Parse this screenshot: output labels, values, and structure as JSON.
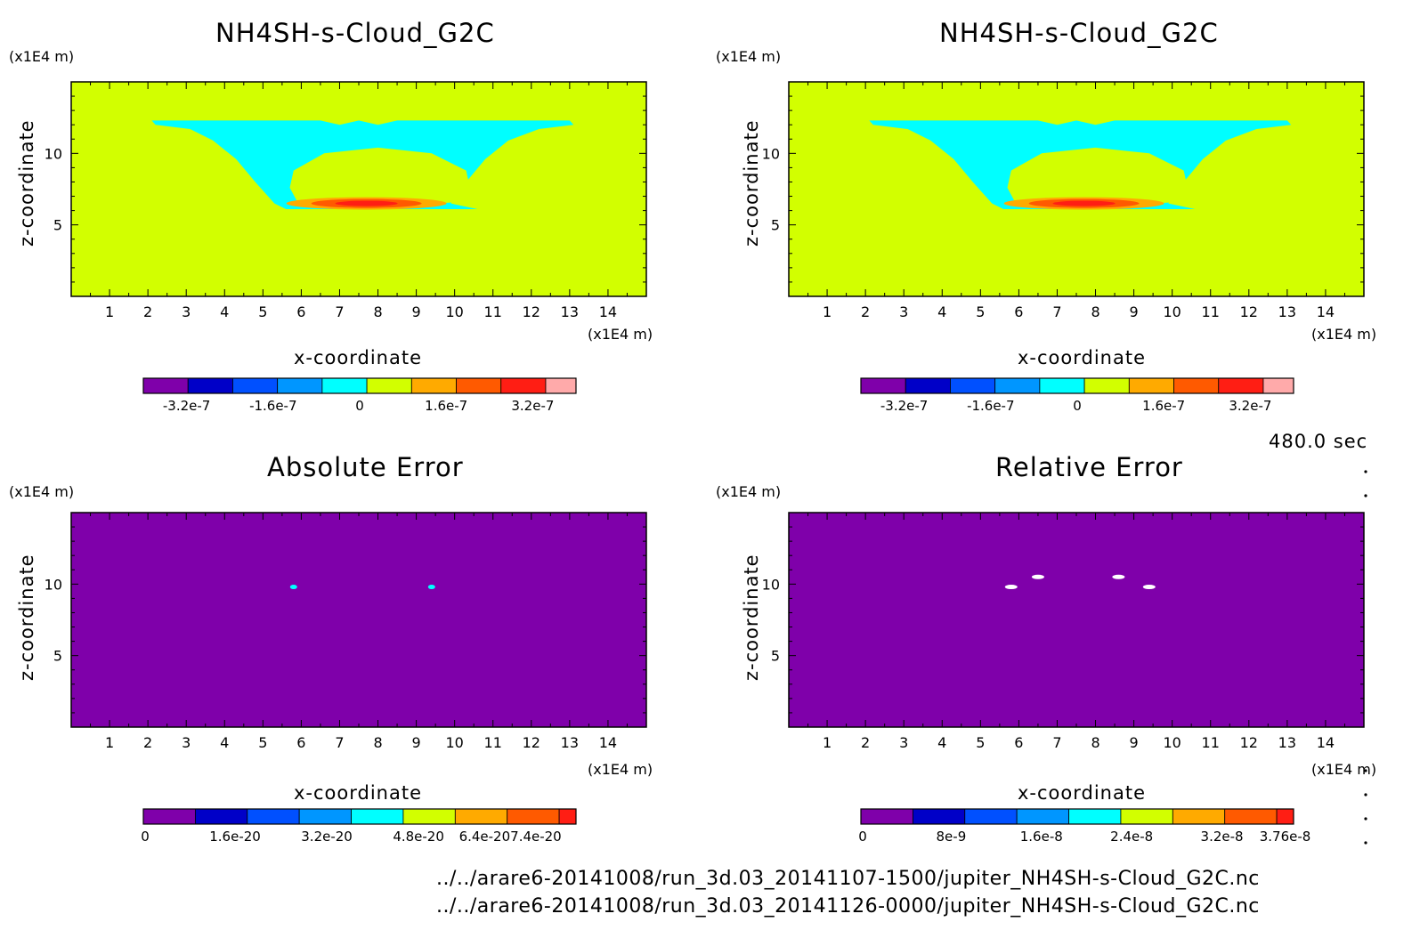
{
  "panels": [
    {
      "title": "NH4SH-s-Cloud_G2C",
      "unit_label": "(x1E4 m)",
      "xunit_label": "(x1E4 m)",
      "xlabel": "x-coordinate",
      "ylabel": "z-coordinate",
      "colorbar_ticks": [
        "-3.2e-7",
        "-1.6e-7",
        "0",
        "1.6e-7",
        "3.2e-7"
      ]
    },
    {
      "title": "NH4SH-s-Cloud_G2C",
      "unit_label": "(x1E4 m)",
      "xunit_label": "(x1E4 m)",
      "xlabel": "x-coordinate",
      "ylabel": "z-coordinate",
      "colorbar_ticks": [
        "-3.2e-7",
        "-1.6e-7",
        "0",
        "1.6e-7",
        "3.2e-7"
      ]
    },
    {
      "title": "Absolute Error",
      "unit_label": "(x1E4 m)",
      "xunit_label": "(x1E4 m)",
      "xlabel": "x-coordinate",
      "ylabel": "z-coordinate",
      "colorbar_ticks": [
        "0",
        "1.6e-20",
        "3.2e-20",
        "4.8e-20",
        "6.4e-207.4e-20"
      ]
    },
    {
      "title": "Relative Error",
      "unit_label": "(x1E4 m)",
      "xunit_label": "(x1E4 m)",
      "xlabel": "x-coordinate",
      "ylabel": "z-coordinate",
      "colorbar_ticks": [
        "0",
        "8e-9",
        "1.6e-8",
        "2.4e-8",
        "3.2e-8",
        "3.76e-8"
      ]
    }
  ],
  "time_label": "480.0 sec",
  "files": [
    "../../arare6-20141008/run_3d.03_20141107-1500/jupiter_NH4SH-s-Cloud_G2C.nc",
    "../../arare6-20141008/run_3d.03_20141126-0000/jupiter_NH4SH-s-Cloud_G2C.nc"
  ],
  "colors": {
    "levels": [
      "#7f00aa",
      "#0000c8",
      "#0050ff",
      "#0096ff",
      "#00ffff",
      "#d2ff00",
      "#ffaa00",
      "#ff5a00",
      "#ff1e14",
      "#ffaaaa"
    ],
    "background_field": "#d2ff00",
    "cloud": "#00ffff",
    "error_field": "#7f00aa"
  },
  "chart_data": [
    {
      "type": "heatmap",
      "title": "NH4SH-s-Cloud_G2C",
      "xlabel": "x-coordinate",
      "ylabel": "z-coordinate",
      "xunit": "(x1E4 m)",
      "yunit": "(x1E4 m)",
      "xlim": [
        0,
        15
      ],
      "ylim": [
        0,
        15
      ],
      "xticks": [
        1,
        2,
        3,
        4,
        5,
        6,
        7,
        8,
        9,
        10,
        11,
        12,
        13,
        14
      ],
      "yticks": [
        5,
        10
      ],
      "colorbar": {
        "levels_count": 10,
        "range": [
          -4e-07,
          4e-07
        ],
        "ticks": [
          -3.2e-07,
          -1.6e-07,
          0,
          1.6e-07,
          3.2e-07
        ]
      },
      "background_value": 0,
      "features": [
        {
          "name": "cloud",
          "value": -5e-08,
          "z_range": [
            6,
            12.5
          ]
        },
        {
          "name": "positive-core",
          "value": 3.2e-07,
          "x": 7.5,
          "z": 6.5
        }
      ]
    },
    {
      "type": "heatmap",
      "title": "NH4SH-s-Cloud_G2C",
      "xlabel": "x-coordinate",
      "ylabel": "z-coordinate",
      "xunit": "(x1E4 m)",
      "yunit": "(x1E4 m)",
      "xlim": [
        0,
        15
      ],
      "ylim": [
        0,
        15
      ],
      "xticks": [
        1,
        2,
        3,
        4,
        5,
        6,
        7,
        8,
        9,
        10,
        11,
        12,
        13,
        14
      ],
      "yticks": [
        5,
        10
      ],
      "colorbar": {
        "levels_count": 10,
        "range": [
          -4e-07,
          4e-07
        ],
        "ticks": [
          -3.2e-07,
          -1.6e-07,
          0,
          1.6e-07,
          3.2e-07
        ]
      },
      "background_value": 0,
      "features": [
        {
          "name": "cloud",
          "value": -5e-08,
          "z_range": [
            6,
            12.5
          ]
        },
        {
          "name": "positive-core",
          "value": 3.2e-07,
          "x": 7.5,
          "z": 6.5
        }
      ]
    },
    {
      "type": "heatmap",
      "title": "Absolute Error",
      "xlabel": "x-coordinate",
      "ylabel": "z-coordinate",
      "xunit": "(x1E4 m)",
      "yunit": "(x1E4 m)",
      "xlim": [
        0,
        15
      ],
      "ylim": [
        0,
        15
      ],
      "xticks": [
        1,
        2,
        3,
        4,
        5,
        6,
        7,
        8,
        9,
        10,
        11,
        12,
        13,
        14
      ],
      "yticks": [
        5,
        10
      ],
      "colorbar": {
        "levels_count": 9,
        "range": [
          0,
          7.4e-20
        ],
        "ticks": [
          0,
          1.6e-20,
          3.2e-20,
          4.8e-20,
          6.4e-20,
          7.4e-20
        ]
      },
      "background_value": 0,
      "spots": [
        {
          "x": 5.8,
          "z": 9.8
        },
        {
          "x": 9.4,
          "z": 9.8
        }
      ]
    },
    {
      "type": "heatmap",
      "title": "Relative Error",
      "xlabel": "x-coordinate",
      "ylabel": "z-coordinate",
      "xunit": "(x1E4 m)",
      "yunit": "(x1E4 m)",
      "xlim": [
        0,
        15
      ],
      "ylim": [
        0,
        15
      ],
      "xticks": [
        1,
        2,
        3,
        4,
        5,
        6,
        7,
        8,
        9,
        10,
        11,
        12,
        13,
        14
      ],
      "yticks": [
        5,
        10
      ],
      "colorbar": {
        "levels_count": 9,
        "range": [
          0,
          3.76e-08
        ],
        "ticks": [
          0,
          8e-09,
          1.6e-08,
          2.4e-08,
          3.2e-08,
          3.76e-08
        ]
      },
      "background_value": 0,
      "spots": [
        {
          "x": 5.8,
          "z": 9.8
        },
        {
          "x": 6.5,
          "z": 10.5
        },
        {
          "x": 8.6,
          "z": 10.5
        },
        {
          "x": 9.4,
          "z": 9.8
        }
      ]
    }
  ]
}
